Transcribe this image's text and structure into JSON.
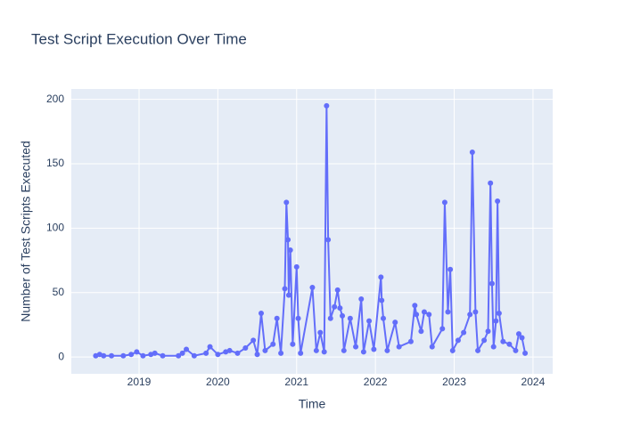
{
  "chart_data": {
    "type": "line",
    "title": "Test Script Execution Over Time",
    "x_label": "Time",
    "y_label": "Number of Test Scripts Executed",
    "series": [
      {
        "name": "Test Scripts",
        "color": "#636efa",
        "x": [
          2018.45,
          2018.5,
          2018.55,
          2018.65,
          2018.8,
          2018.9,
          2018.97,
          2019.05,
          2019.15,
          2019.2,
          2019.3,
          2019.5,
          2019.55,
          2019.6,
          2019.7,
          2019.85,
          2019.9,
          2020.0,
          2020.1,
          2020.15,
          2020.25,
          2020.35,
          2020.45,
          2020.5,
          2020.55,
          2020.6,
          2020.7,
          2020.75,
          2020.8,
          2020.85,
          2020.87,
          2020.89,
          2020.9,
          2020.92,
          2020.95,
          2021.0,
          2021.02,
          2021.05,
          2021.2,
          2021.25,
          2021.3,
          2021.35,
          2021.38,
          2021.4,
          2021.43,
          2021.48,
          2021.52,
          2021.55,
          2021.58,
          2021.6,
          2021.68,
          2021.75,
          2021.82,
          2021.85,
          2021.92,
          2021.98,
          2022.07,
          2022.08,
          2022.1,
          2022.15,
          2022.25,
          2022.3,
          2022.45,
          2022.5,
          2022.52,
          2022.58,
          2022.62,
          2022.68,
          2022.72,
          2022.85,
          2022.88,
          2022.92,
          2022.95,
          2022.98,
          2023.05,
          2023.12,
          2023.2,
          2023.23,
          2023.27,
          2023.3,
          2023.38,
          2023.43,
          2023.46,
          2023.48,
          2023.5,
          2023.53,
          2023.55,
          2023.57,
          2023.62,
          2023.7,
          2023.78,
          2023.82,
          2023.86,
          2023.9
        ],
        "values": [
          1,
          2,
          1,
          1,
          1,
          2,
          4,
          1,
          2,
          3,
          1,
          1,
          3,
          6,
          1,
          3,
          8,
          2,
          4,
          5,
          3,
          7,
          13,
          2,
          34,
          5,
          10,
          30,
          3,
          53,
          120,
          91,
          48,
          83,
          10,
          70,
          30,
          3,
          54,
          5,
          19,
          4,
          195,
          91,
          30,
          39,
          52,
          38,
          32,
          5,
          30,
          8,
          45,
          4,
          28,
          6,
          62,
          44,
          30,
          5,
          27,
          8,
          12,
          40,
          33,
          20,
          35,
          33,
          8,
          22,
          120,
          35,
          68,
          5,
          13,
          19,
          33,
          159,
          35,
          5,
          13,
          20,
          135,
          57,
          8,
          28,
          121,
          34,
          12,
          10,
          5,
          18,
          15,
          3
        ]
      }
    ],
    "xlim": [
      2018.14,
      2024.25
    ],
    "xticks": [
      2019,
      2020,
      2021,
      2022,
      2023,
      2024
    ],
    "ylim": [
      -13,
      208
    ],
    "yticks": [
      0,
      50,
      100,
      150,
      200
    ],
    "grid": true
  }
}
